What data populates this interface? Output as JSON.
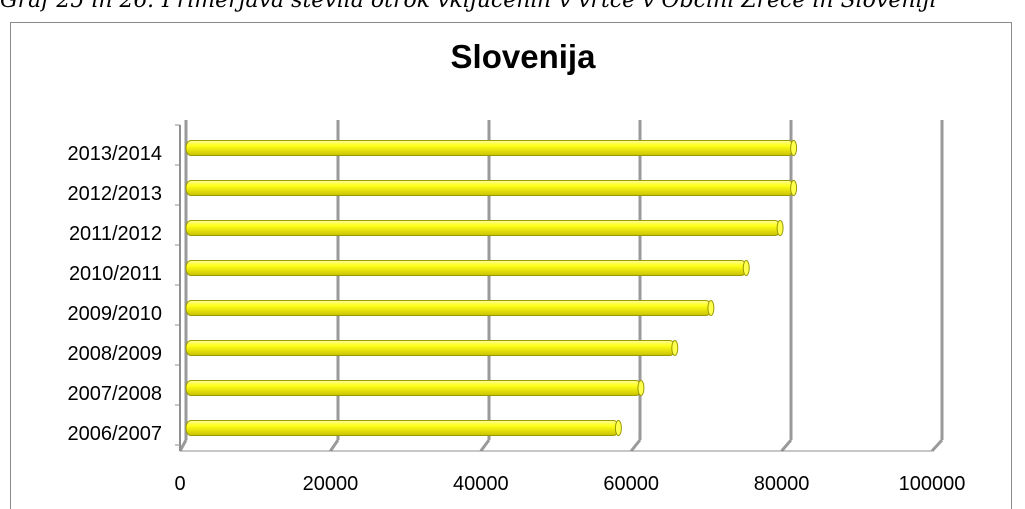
{
  "caption": "Graf 25 in 26: Primerjava števila otrok vključenih v vrtce v Občini Zreče in Sloveniji",
  "chart_data": {
    "type": "bar",
    "orientation": "horizontal",
    "title": "Slovenija",
    "categories": [
      "2006/2007",
      "2007/2008",
      "2008/2009",
      "2009/2010",
      "2010/2011",
      "2011/2012",
      "2012/2013",
      "2013/2014"
    ],
    "values": [
      57500,
      60500,
      65000,
      69800,
      74500,
      79000,
      80800,
      80800
    ],
    "xlim": [
      0,
      100000
    ],
    "xticks": [
      0,
      20000,
      40000,
      60000,
      80000,
      100000
    ],
    "xtick_labels": [
      "0",
      "20000",
      "40000",
      "60000",
      "80000",
      "100000"
    ],
    "grid": true,
    "legend": "none",
    "bar_color": "#ffff1a",
    "bar_edge_color": "#9a9a00",
    "grid_color": "#8f8f8f"
  }
}
